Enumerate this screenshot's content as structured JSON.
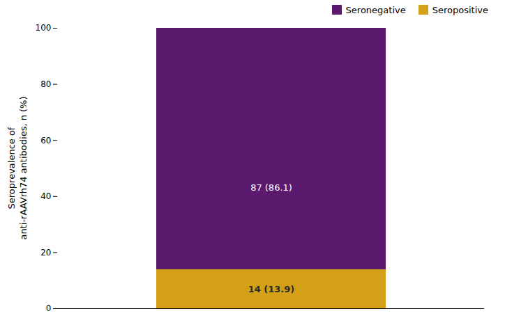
{
  "chart_data": {
    "type": "bar",
    "stacked": true,
    "categories": [
      null
    ],
    "ylabel": "Seroprevalence of\nanti-rAAVrh74 antibodies, n (%)",
    "ylim": [
      0,
      100
    ],
    "yticks": [
      0,
      20,
      40,
      60,
      80,
      100
    ],
    "series": [
      {
        "name": "Seropositive",
        "color": "#D4A017",
        "values": [
          13.9
        ],
        "value_labels": [
          "14 (13.9)"
        ]
      },
      {
        "name": "Seronegative",
        "color": "#5B1A6E",
        "values": [
          86.1
        ],
        "value_labels": [
          "87 (86.1)"
        ]
      }
    ],
    "data_labels": true,
    "legend": "upper right",
    "grid": false,
    "tick_labels": "y"
  }
}
